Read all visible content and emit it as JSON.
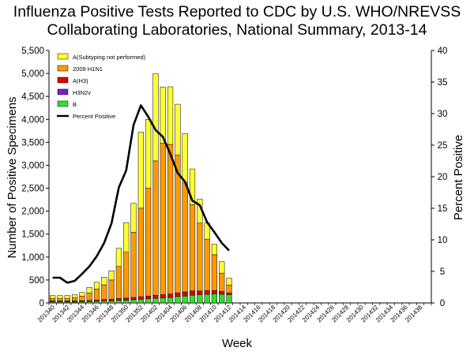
{
  "chart_data": {
    "type": "bar",
    "stacked": true,
    "title_lines": [
      "Influenza Positive Tests Reported to CDC by U.S. WHO/NREVSS",
      "Collaborating Laboratories, National Summary, 2013-14"
    ],
    "xlabel": "Week",
    "ylabel": "Number of Positive Specimens",
    "y2label": "Percent Positive",
    "ylim": [
      0,
      5500
    ],
    "y2lim": [
      0,
      40
    ],
    "yticks": [
      "0",
      "500",
      "1,000",
      "1,500",
      "2,000",
      "2,500",
      "3,000",
      "3,500",
      "4,000",
      "4,500",
      "5,000",
      "5,500"
    ],
    "y2ticks": [
      "0",
      "5",
      "10",
      "15",
      "20",
      "25",
      "30",
      "35",
      "40"
    ],
    "week_tick_labels": [
      "201340",
      "201342",
      "201344",
      "201346",
      "201348",
      "201350",
      "201352",
      "201402",
      "201404",
      "201406",
      "201408",
      "201410",
      "201412",
      "201414",
      "201416",
      "201418",
      "201420",
      "201422",
      "201424",
      "201426",
      "201428",
      "201430",
      "201432",
      "201434",
      "201436",
      "201438"
    ],
    "num_weeks": 52,
    "series": [
      {
        "name": "B",
        "color": "#33dd33",
        "values": [
          20,
          20,
          20,
          20,
          25,
          30,
          35,
          40,
          45,
          55,
          60,
          70,
          80,
          90,
          100,
          110,
          120,
          140,
          150,
          170,
          180,
          190,
          200,
          190,
          180
        ]
      },
      {
        "name": "H3N2v",
        "color": "#7722cc",
        "values": [
          0,
          0,
          0,
          0,
          0,
          0,
          0,
          0,
          0,
          0,
          0,
          0,
          0,
          0,
          0,
          0,
          0,
          0,
          0,
          0,
          0,
          0,
          0,
          0,
          0
        ]
      },
      {
        "name": "A(H3)",
        "color": "#dd0000",
        "values": [
          25,
          25,
          25,
          25,
          25,
          25,
          30,
          35,
          35,
          40,
          45,
          50,
          55,
          60,
          65,
          70,
          75,
          80,
          90,
          90,
          80,
          80,
          70,
          60,
          40
        ]
      },
      {
        "name": "2009 H1N1",
        "color": "#ff9900",
        "values": [
          55,
          55,
          55,
          65,
          100,
          160,
          240,
          320,
          420,
          700,
          1000,
          1420,
          1930,
          2350,
          2930,
          3300,
          3260,
          3000,
          2380,
          1880,
          1480,
          1120,
          780,
          400,
          170
        ]
      },
      {
        "name": "A(Subtyping not performed)",
        "color": "#ffff33",
        "values": [
          60,
          60,
          60,
          70,
          80,
          125,
          145,
          165,
          200,
          395,
          645,
          630,
          1655,
          1500,
          1905,
          1220,
          1255,
          1110,
          1070,
          780,
          520,
          350,
          230,
          250,
          150
        ]
      }
    ],
    "line_series": {
      "name": "Percent Positive",
      "color": "#000000",
      "axis": "right",
      "values": [
        4.0,
        4.0,
        3.2,
        3.5,
        4.6,
        5.8,
        7.4,
        9.5,
        12.6,
        18.3,
        21.0,
        28.2,
        31.3,
        29.5,
        27.4,
        26.3,
        23.6,
        20.6,
        19.2,
        16.2,
        15.5,
        12.8,
        11.2,
        9.5,
        8.3
      ]
    },
    "legend": [
      {
        "name": "A(Subtyping not performed)",
        "color": "#ffff33",
        "kind": "box"
      },
      {
        "name": "2009 H1N1",
        "color": "#ff9900",
        "kind": "box"
      },
      {
        "name": "A(H3)",
        "color": "#dd0000",
        "kind": "box"
      },
      {
        "name": "H3N2v",
        "color": "#7722cc",
        "kind": "box"
      },
      {
        "name": "B",
        "color": "#33dd33",
        "kind": "box"
      },
      {
        "name": "Percent Positive",
        "color": "#000000",
        "kind": "line"
      }
    ]
  }
}
